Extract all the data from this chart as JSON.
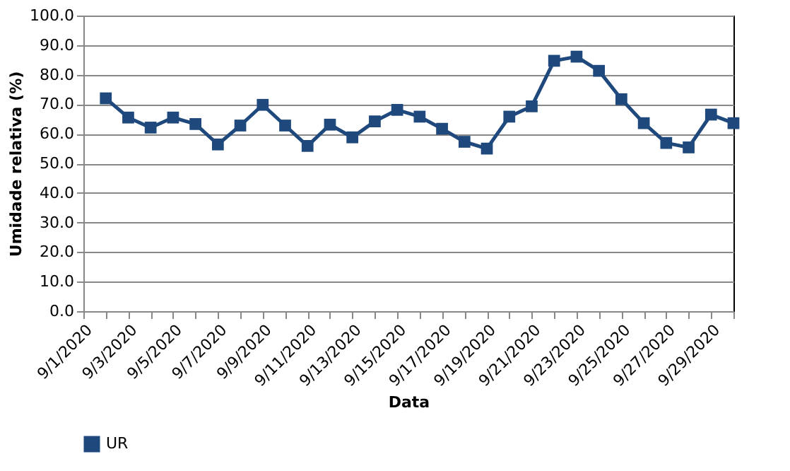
{
  "chart_data": {
    "type": "line",
    "xlabel": "Data",
    "ylabel": "Umidade relativa  (%)",
    "categories": [
      "9/1/2020",
      null,
      "9/3/2020",
      null,
      "9/5/2020",
      null,
      "9/7/2020",
      null,
      "9/9/2020",
      null,
      "9/11/2020",
      null,
      "9/13/2020",
      null,
      "9/15/2020",
      null,
      "9/17/2020",
      null,
      "9/19/2020",
      null,
      "9/21/2020",
      null,
      "9/23/2020",
      null,
      "9/25/2020",
      null,
      "9/27/2020",
      null,
      "9/29/2020",
      null
    ],
    "series": [
      {
        "name": "UR",
        "color": "#1f497d",
        "values": [
          null,
          72.0,
          65.5,
          62.1,
          65.5,
          63.3,
          56.4,
          62.8,
          69.8,
          62.8,
          55.9,
          63.1,
          58.8,
          64.2,
          68.1,
          65.8,
          61.7,
          57.3,
          55.0,
          65.8,
          69.3,
          84.7,
          86.1,
          81.3,
          71.7,
          63.6,
          56.9,
          55.4,
          66.5,
          63.6
        ]
      }
    ],
    "ylim": [
      0,
      100
    ],
    "yticks": [
      {
        "value": 0,
        "label": "0.0"
      },
      {
        "value": 10,
        "label": "10.0"
      },
      {
        "value": 20,
        "label": "20.0"
      },
      {
        "value": 30,
        "label": "30.0"
      },
      {
        "value": 40,
        "label": "40.0"
      },
      {
        "value": 50,
        "label": "50.0"
      },
      {
        "value": 60,
        "label": "60.0"
      },
      {
        "value": 70,
        "label": "70.0"
      },
      {
        "value": 80,
        "label": "80.0"
      },
      {
        "value": 90,
        "label": "90.0"
      },
      {
        "value": 100,
        "label": "100.0"
      }
    ],
    "grid": "y",
    "legend": "bottom",
    "marker": "square",
    "line_style": "solid"
  }
}
